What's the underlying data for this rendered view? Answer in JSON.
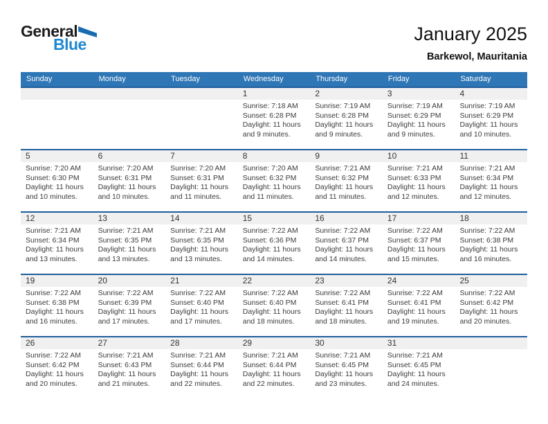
{
  "logo": {
    "part1": "General",
    "part2": "Blue"
  },
  "header": {
    "title": "January 2025",
    "subtitle": "Barkewol, Mauritania"
  },
  "weekdays": [
    "Sunday",
    "Monday",
    "Tuesday",
    "Wednesday",
    "Thursday",
    "Friday",
    "Saturday"
  ],
  "weeks": [
    [
      null,
      null,
      null,
      {
        "day": "1",
        "sunrise": "Sunrise: 7:18 AM",
        "sunset": "Sunset: 6:28 PM",
        "daylight": "Daylight: 11 hours and 9 minutes."
      },
      {
        "day": "2",
        "sunrise": "Sunrise: 7:19 AM",
        "sunset": "Sunset: 6:28 PM",
        "daylight": "Daylight: 11 hours and 9 minutes."
      },
      {
        "day": "3",
        "sunrise": "Sunrise: 7:19 AM",
        "sunset": "Sunset: 6:29 PM",
        "daylight": "Daylight: 11 hours and 9 minutes."
      },
      {
        "day": "4",
        "sunrise": "Sunrise: 7:19 AM",
        "sunset": "Sunset: 6:29 PM",
        "daylight": "Daylight: 11 hours and 10 minutes."
      }
    ],
    [
      {
        "day": "5",
        "sunrise": "Sunrise: 7:20 AM",
        "sunset": "Sunset: 6:30 PM",
        "daylight": "Daylight: 11 hours and 10 minutes."
      },
      {
        "day": "6",
        "sunrise": "Sunrise: 7:20 AM",
        "sunset": "Sunset: 6:31 PM",
        "daylight": "Daylight: 11 hours and 10 minutes."
      },
      {
        "day": "7",
        "sunrise": "Sunrise: 7:20 AM",
        "sunset": "Sunset: 6:31 PM",
        "daylight": "Daylight: 11 hours and 11 minutes."
      },
      {
        "day": "8",
        "sunrise": "Sunrise: 7:20 AM",
        "sunset": "Sunset: 6:32 PM",
        "daylight": "Daylight: 11 hours and 11 minutes."
      },
      {
        "day": "9",
        "sunrise": "Sunrise: 7:21 AM",
        "sunset": "Sunset: 6:32 PM",
        "daylight": "Daylight: 11 hours and 11 minutes."
      },
      {
        "day": "10",
        "sunrise": "Sunrise: 7:21 AM",
        "sunset": "Sunset: 6:33 PM",
        "daylight": "Daylight: 11 hours and 12 minutes."
      },
      {
        "day": "11",
        "sunrise": "Sunrise: 7:21 AM",
        "sunset": "Sunset: 6:34 PM",
        "daylight": "Daylight: 11 hours and 12 minutes."
      }
    ],
    [
      {
        "day": "12",
        "sunrise": "Sunrise: 7:21 AM",
        "sunset": "Sunset: 6:34 PM",
        "daylight": "Daylight: 11 hours and 13 minutes."
      },
      {
        "day": "13",
        "sunrise": "Sunrise: 7:21 AM",
        "sunset": "Sunset: 6:35 PM",
        "daylight": "Daylight: 11 hours and 13 minutes."
      },
      {
        "day": "14",
        "sunrise": "Sunrise: 7:21 AM",
        "sunset": "Sunset: 6:35 PM",
        "daylight": "Daylight: 11 hours and 13 minutes."
      },
      {
        "day": "15",
        "sunrise": "Sunrise: 7:22 AM",
        "sunset": "Sunset: 6:36 PM",
        "daylight": "Daylight: 11 hours and 14 minutes."
      },
      {
        "day": "16",
        "sunrise": "Sunrise: 7:22 AM",
        "sunset": "Sunset: 6:37 PM",
        "daylight": "Daylight: 11 hours and 14 minutes."
      },
      {
        "day": "17",
        "sunrise": "Sunrise: 7:22 AM",
        "sunset": "Sunset: 6:37 PM",
        "daylight": "Daylight: 11 hours and 15 minutes."
      },
      {
        "day": "18",
        "sunrise": "Sunrise: 7:22 AM",
        "sunset": "Sunset: 6:38 PM",
        "daylight": "Daylight: 11 hours and 16 minutes."
      }
    ],
    [
      {
        "day": "19",
        "sunrise": "Sunrise: 7:22 AM",
        "sunset": "Sunset: 6:38 PM",
        "daylight": "Daylight: 11 hours and 16 minutes."
      },
      {
        "day": "20",
        "sunrise": "Sunrise: 7:22 AM",
        "sunset": "Sunset: 6:39 PM",
        "daylight": "Daylight: 11 hours and 17 minutes."
      },
      {
        "day": "21",
        "sunrise": "Sunrise: 7:22 AM",
        "sunset": "Sunset: 6:40 PM",
        "daylight": "Daylight: 11 hours and 17 minutes."
      },
      {
        "day": "22",
        "sunrise": "Sunrise: 7:22 AM",
        "sunset": "Sunset: 6:40 PM",
        "daylight": "Daylight: 11 hours and 18 minutes."
      },
      {
        "day": "23",
        "sunrise": "Sunrise: 7:22 AM",
        "sunset": "Sunset: 6:41 PM",
        "daylight": "Daylight: 11 hours and 18 minutes."
      },
      {
        "day": "24",
        "sunrise": "Sunrise: 7:22 AM",
        "sunset": "Sunset: 6:41 PM",
        "daylight": "Daylight: 11 hours and 19 minutes."
      },
      {
        "day": "25",
        "sunrise": "Sunrise: 7:22 AM",
        "sunset": "Sunset: 6:42 PM",
        "daylight": "Daylight: 11 hours and 20 minutes."
      }
    ],
    [
      {
        "day": "26",
        "sunrise": "Sunrise: 7:22 AM",
        "sunset": "Sunset: 6:42 PM",
        "daylight": "Daylight: 11 hours and 20 minutes."
      },
      {
        "day": "27",
        "sunrise": "Sunrise: 7:21 AM",
        "sunset": "Sunset: 6:43 PM",
        "daylight": "Daylight: 11 hours and 21 minutes."
      },
      {
        "day": "28",
        "sunrise": "Sunrise: 7:21 AM",
        "sunset": "Sunset: 6:44 PM",
        "daylight": "Daylight: 11 hours and 22 minutes."
      },
      {
        "day": "29",
        "sunrise": "Sunrise: 7:21 AM",
        "sunset": "Sunset: 6:44 PM",
        "daylight": "Daylight: 11 hours and 22 minutes."
      },
      {
        "day": "30",
        "sunrise": "Sunrise: 7:21 AM",
        "sunset": "Sunset: 6:45 PM",
        "daylight": "Daylight: 11 hours and 23 minutes."
      },
      {
        "day": "31",
        "sunrise": "Sunrise: 7:21 AM",
        "sunset": "Sunset: 6:45 PM",
        "daylight": "Daylight: 11 hours and 24 minutes."
      },
      null
    ]
  ],
  "colors": {
    "header_bar": "#2E76B5",
    "week_divider": "#1E5C9B",
    "day_band": "#F0F0F0",
    "logo_blue": "#1E87D0",
    "logo_triangle": "#1A6CB0"
  }
}
